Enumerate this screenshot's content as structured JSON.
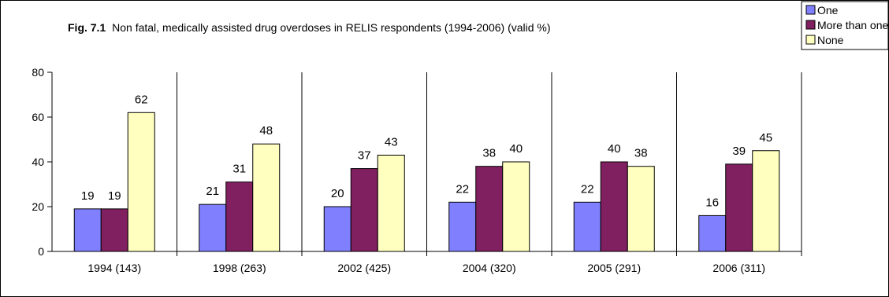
{
  "chart_data": {
    "type": "bar",
    "title_prefix": "Fig. 7.1",
    "title": "Non fatal, medically assisted drug overdoses in RELIS respondents (1994-2006) (valid %)",
    "categories": [
      "1994 (143)",
      "1998 (263)",
      "2002 (425)",
      "2004 (320)",
      "2005 (291)",
      "2006 (311)"
    ],
    "series": [
      {
        "name": "One",
        "color": "#8080FF",
        "values": [
          19,
          21,
          20,
          22,
          22,
          16
        ]
      },
      {
        "name": "More than one",
        "color": "#802060",
        "values": [
          19,
          31,
          37,
          38,
          40,
          39
        ]
      },
      {
        "name": "None",
        "color": "#FFFFC0",
        "values": [
          62,
          48,
          43,
          40,
          38,
          45
        ]
      }
    ],
    "ylim": [
      0,
      80
    ],
    "yticks": [
      0,
      20,
      40,
      60,
      80
    ],
    "data_labels": true,
    "grid": false,
    "category_separators": true,
    "legend_position": "top-right"
  }
}
